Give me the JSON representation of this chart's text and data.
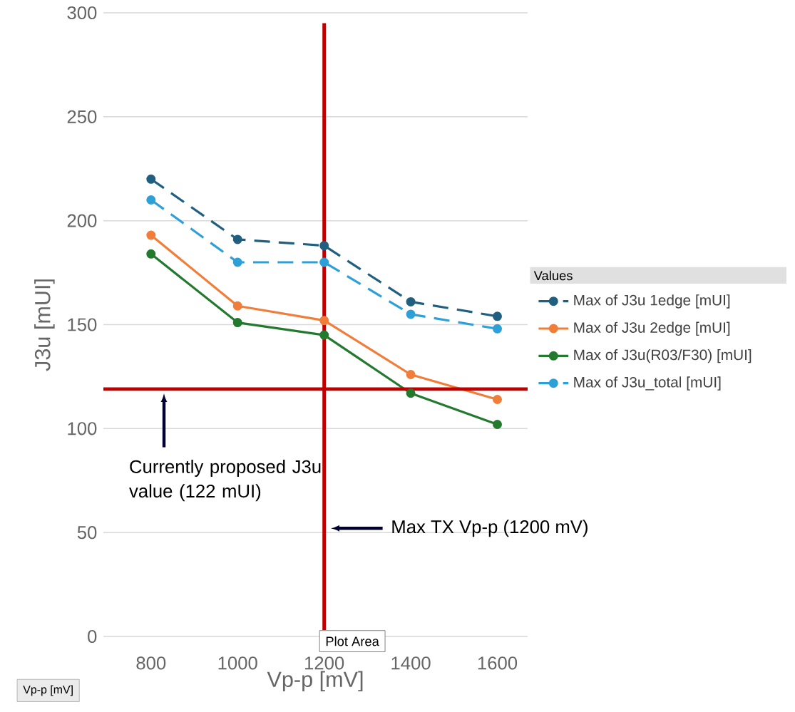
{
  "chart_data": {
    "type": "line",
    "xlabel": "Vp-p [mV]",
    "ylabel": "J3u [mUI]",
    "legend_title": "Values",
    "x": [
      800,
      1000,
      1200,
      1400,
      1600
    ],
    "series": [
      {
        "name": "Max of J3u 1edge  [mUI]",
        "color": "#215f80",
        "line_style": "dashed",
        "values": [
          220,
          191,
          188,
          161,
          154
        ]
      },
      {
        "name": "Max of J3u 2edge  [mUI]",
        "color": "#f07e3a",
        "line_style": "solid",
        "values": [
          193,
          159,
          152,
          126,
          114
        ]
      },
      {
        "name": "Max of J3u(R03/F30)  [mUI]",
        "color": "#237a2e",
        "line_style": "solid",
        "values": [
          184,
          151,
          145,
          117,
          102
        ]
      },
      {
        "name": "Max of J3u_total [mUI]",
        "color": "#2ea0d8",
        "line_style": "dashed",
        "values": [
          210,
          180,
          180,
          155,
          148
        ]
      }
    ],
    "xlim": [
      690,
      1670
    ],
    "xticks": [
      800,
      1000,
      1200,
      1400,
      1600
    ],
    "ylim": [
      0,
      300
    ],
    "yticks": [
      0,
      50,
      100,
      150,
      200,
      250,
      300
    ],
    "ref_lines": [
      {
        "axis": "y",
        "value": 119,
        "color": "#c00000"
      },
      {
        "axis": "x",
        "value": 1200,
        "color": "#c00000"
      }
    ],
    "annotations": [
      "Currently proposed J3u value (122 mUI)",
      "Max TX Vp-p (1200 mV)",
      "Plot Area",
      "Vp-p [mV]"
    ],
    "grid": "y",
    "legend": "right",
    "marker": "circle"
  }
}
